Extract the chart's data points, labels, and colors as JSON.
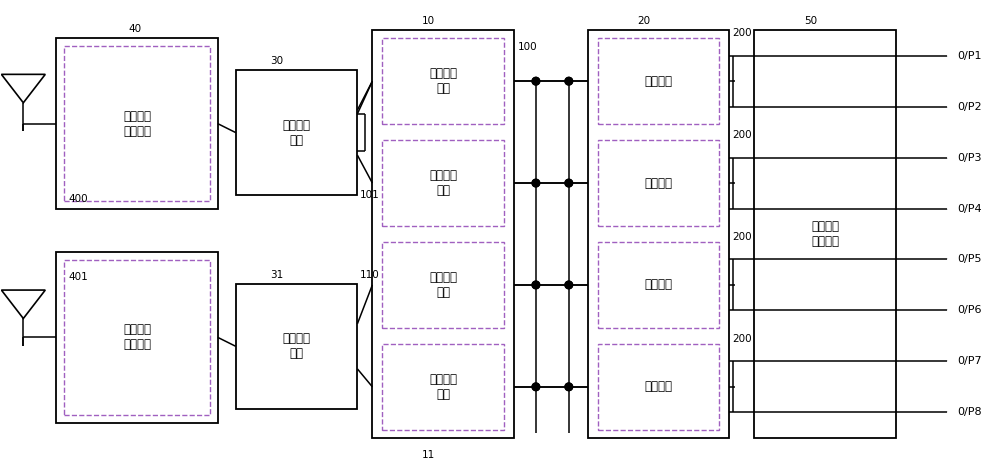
{
  "bg_color": "#ffffff",
  "line_color": "#000000",
  "dashed_color": "#a060c0",
  "fig_width": 10.0,
  "fig_height": 4.67,
  "labels": {
    "block_40": "第一射频\n放大电路",
    "block_401": "第二射频\n放大电路",
    "block_30": "第一混频\n电路",
    "block_31": "第二混频\n电路",
    "block_10_b1": "第一放大\n支路",
    "block_10_b2": "第二放大\n支路",
    "block_10_b3": "第三放大\n支路",
    "block_10_b4": "第四放大\n支路",
    "block_20_sw1": "开关电路",
    "block_20_sw2": "开关电路",
    "block_20_sw3": "开关电路",
    "block_20_sw4": "开关电路",
    "block_50": "第三中频\n放大电路",
    "ports": [
      "0/P1",
      "0/P2",
      "0/P3",
      "0/P4",
      "0/P5",
      "0/P6",
      "0/P7",
      "0/P8"
    ]
  },
  "font_size_main": 8.5,
  "font_size_ref": 7.5,
  "font_size_port": 8.0
}
